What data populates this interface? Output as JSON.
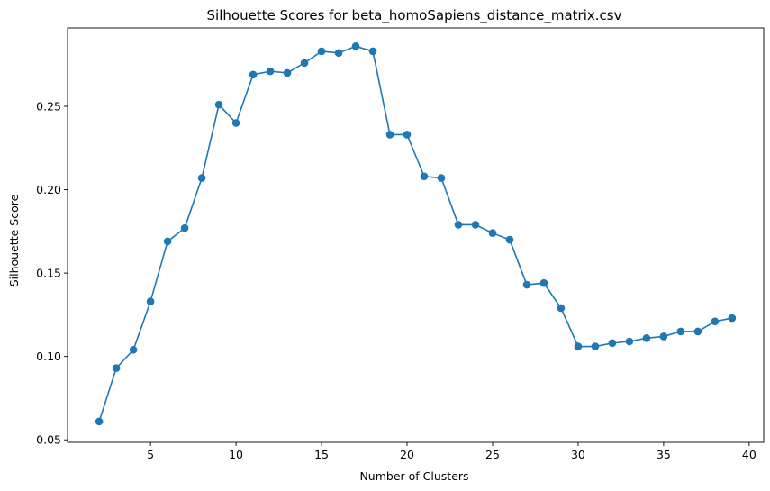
{
  "chart_data": {
    "type": "line",
    "title": "Silhouette Scores for beta_homoSapiens_distance_matrix.csv",
    "xlabel": "Number of Clusters",
    "ylabel": "Silhouette Score",
    "xlim": [
      0.15,
      40.85
    ],
    "ylim": [
      0.0485,
      0.297
    ],
    "x_ticks": [
      5,
      10,
      15,
      20,
      25,
      30,
      35,
      40
    ],
    "x_tick_labels": [
      "5",
      "10",
      "15",
      "20",
      "25",
      "30",
      "35",
      "40"
    ],
    "y_ticks": [
      0.05,
      0.1,
      0.15,
      0.2,
      0.25
    ],
    "y_tick_labels": [
      "0.05",
      "0.10",
      "0.15",
      "0.20",
      "0.25"
    ],
    "grid": false,
    "legend": "none",
    "series": [
      {
        "color": "#1f77b4",
        "marker": "circle",
        "x": [
          2,
          3,
          4,
          5,
          6,
          7,
          8,
          9,
          10,
          11,
          12,
          13,
          14,
          15,
          16,
          17,
          18,
          19,
          20,
          21,
          22,
          23,
          24,
          25,
          26,
          27,
          28,
          29,
          30,
          31,
          32,
          33,
          34,
          35,
          36,
          37,
          38,
          39
        ],
        "y": [
          0.061,
          0.093,
          0.104,
          0.133,
          0.169,
          0.177,
          0.207,
          0.251,
          0.24,
          0.269,
          0.271,
          0.27,
          0.276,
          0.283,
          0.282,
          0.286,
          0.283,
          0.233,
          0.233,
          0.208,
          0.207,
          0.179,
          0.179,
          0.174,
          0.17,
          0.143,
          0.144,
          0.129,
          0.106,
          0.106,
          0.108,
          0.109,
          0.111,
          0.112,
          0.115,
          0.115,
          0.121,
          0.123
        ]
      }
    ]
  }
}
